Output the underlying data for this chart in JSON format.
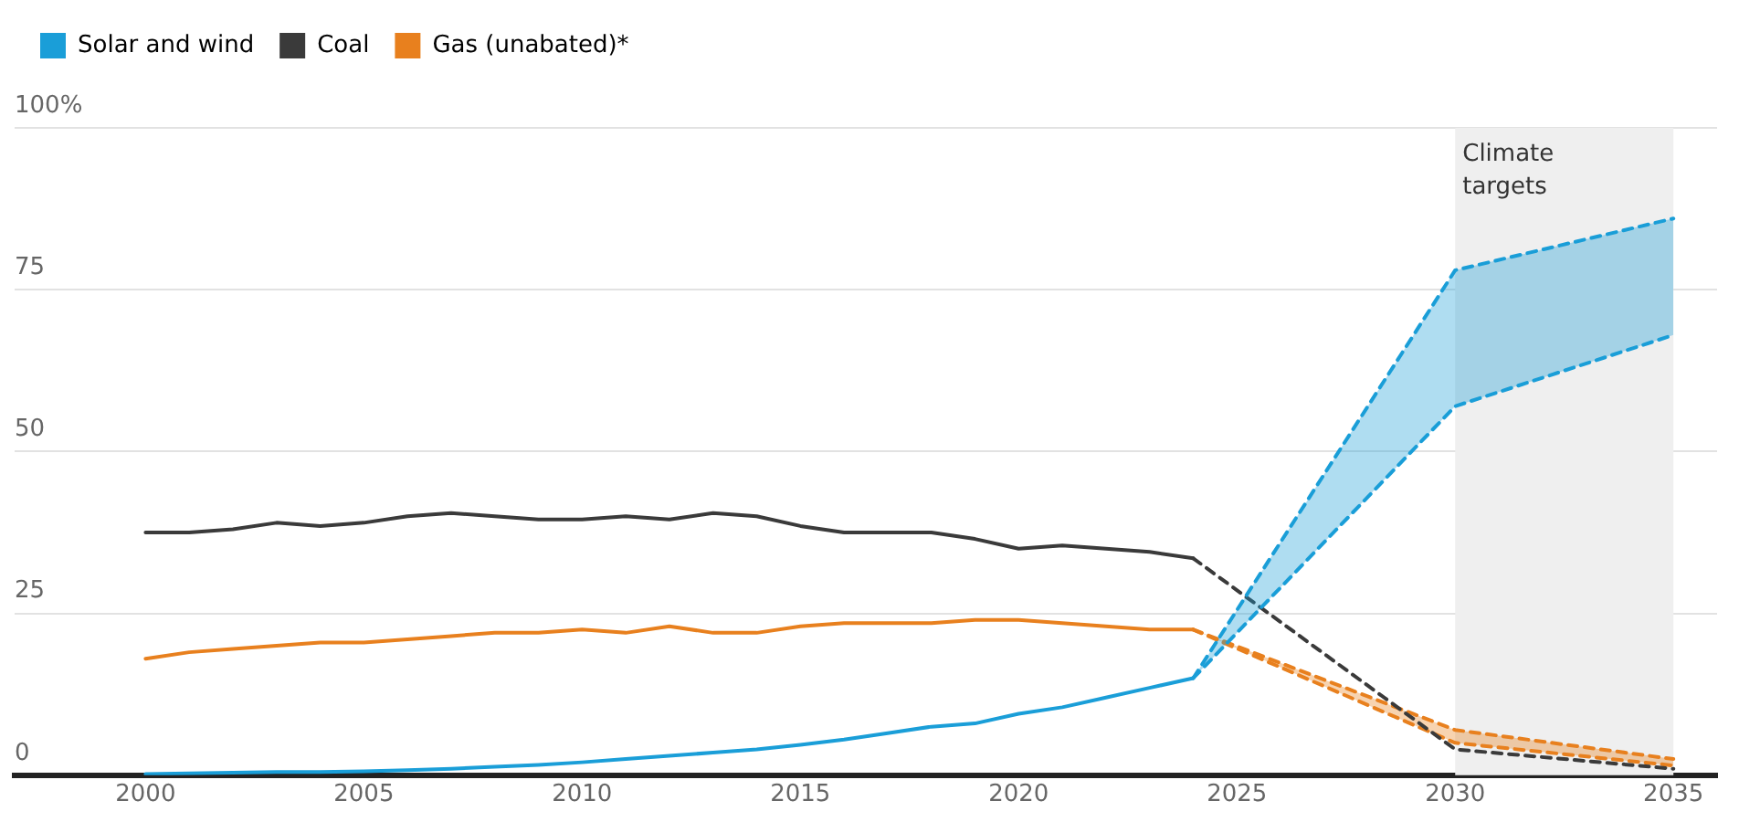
{
  "chart_data": {
    "type": "line",
    "xlim": [
      1997,
      2036
    ],
    "xticks": [
      2000,
      2005,
      2010,
      2015,
      2020,
      2025,
      2030,
      2035
    ],
    "ylim": [
      0,
      100
    ],
    "yticks": [
      0,
      25,
      50,
      75,
      {
        "value": 100,
        "label": "100%"
      }
    ],
    "grid": "y",
    "legend": "top left",
    "marker": "none",
    "line_style": "solid",
    "series": [
      {
        "name": "Solar and wind",
        "color": "#1a9ed8",
        "x": [
          2000,
          2001,
          2002,
          2003,
          2004,
          2005,
          2006,
          2007,
          2008,
          2009,
          2010,
          2011,
          2012,
          2013,
          2014,
          2015,
          2016,
          2017,
          2018,
          2019,
          2020,
          2021,
          2022,
          2023,
          2024
        ],
        "values": [
          0.2,
          0.3,
          0.4,
          0.5,
          0.5,
          0.6,
          0.8,
          1,
          1.3,
          1.6,
          2,
          2.5,
          3,
          3.5,
          4,
          4.7,
          5.5,
          6.5,
          7.5,
          8,
          9.5,
          10.5,
          12,
          13.5,
          15
        ]
      },
      {
        "name": "Coal",
        "color": "#3a3a3a",
        "x": [
          2000,
          2001,
          2002,
          2003,
          2004,
          2005,
          2006,
          2007,
          2008,
          2009,
          2010,
          2011,
          2012,
          2013,
          2014,
          2015,
          2016,
          2017,
          2018,
          2019,
          2020,
          2021,
          2022,
          2023,
          2024
        ],
        "values": [
          37.5,
          37.5,
          38,
          39,
          38.5,
          39,
          40,
          40.5,
          40,
          39.5,
          39.5,
          40,
          39.5,
          40.5,
          40,
          38.5,
          37.5,
          37.5,
          37.5,
          36.5,
          35,
          35.5,
          35,
          34.5,
          33.5
        ]
      },
      {
        "name": "Gas (unabated)*",
        "color": "#e8801e",
        "x": [
          2000,
          2001,
          2002,
          2003,
          2004,
          2005,
          2006,
          2007,
          2008,
          2009,
          2010,
          2011,
          2012,
          2013,
          2014,
          2015,
          2016,
          2017,
          2018,
          2019,
          2020,
          2021,
          2022,
          2023,
          2024
        ],
        "values": [
          18,
          19,
          19.5,
          20,
          20.5,
          20.5,
          21,
          21.5,
          22,
          22,
          22.5,
          22,
          23,
          22,
          22,
          23,
          23.5,
          23.5,
          23.5,
          24,
          24,
          23.5,
          23,
          22.5,
          22.5
        ]
      },
      {
        "color": "#1a9ed8",
        "line_style": "dashed",
        "x": [
          2024,
          2030,
          2035
        ],
        "values": [
          null,
          null,
          null
        ],
        "lower": [
          15,
          57,
          68
        ],
        "upper": [
          15,
          78,
          86
        ]
      },
      {
        "color": "#1a9ed8",
        "line_style": "dashed",
        "x": [
          2024,
          2030,
          2035
        ],
        "values": [
          15,
          57,
          68
        ]
      },
      {
        "color": "#1a9ed8",
        "line_style": "dashed",
        "x": [
          2024,
          2030,
          2035
        ],
        "values": [
          15,
          78,
          86
        ]
      },
      {
        "color": "#3a3a3a",
        "line_style": "dashed",
        "x": [
          2024,
          2030,
          2035
        ],
        "values": [
          33.5,
          4,
          1
        ]
      },
      {
        "color": "#e8801e",
        "line_style": "dashed",
        "x": [
          2024,
          2030,
          2035
        ],
        "values": [
          22.5,
          5,
          1.5
        ]
      },
      {
        "color": "#e8801e",
        "line_style": "dashed",
        "x": [
          2024,
          2030,
          2035
        ],
        "values": [
          22.5,
          7,
          2.5
        ]
      },
      {
        "color": "#e8801e",
        "line_style": "dashed",
        "x": [
          2024,
          2030,
          2035
        ],
        "values": [
          null,
          null,
          null
        ],
        "lower": [
          22.5,
          5,
          1.5
        ],
        "upper": [
          22.5,
          7,
          2.5
        ]
      }
    ],
    "bands": [
      {
        "axis": "x",
        "from": 2030,
        "to": 2035,
        "label": "Climate targets",
        "color": "#efefef"
      }
    ]
  }
}
